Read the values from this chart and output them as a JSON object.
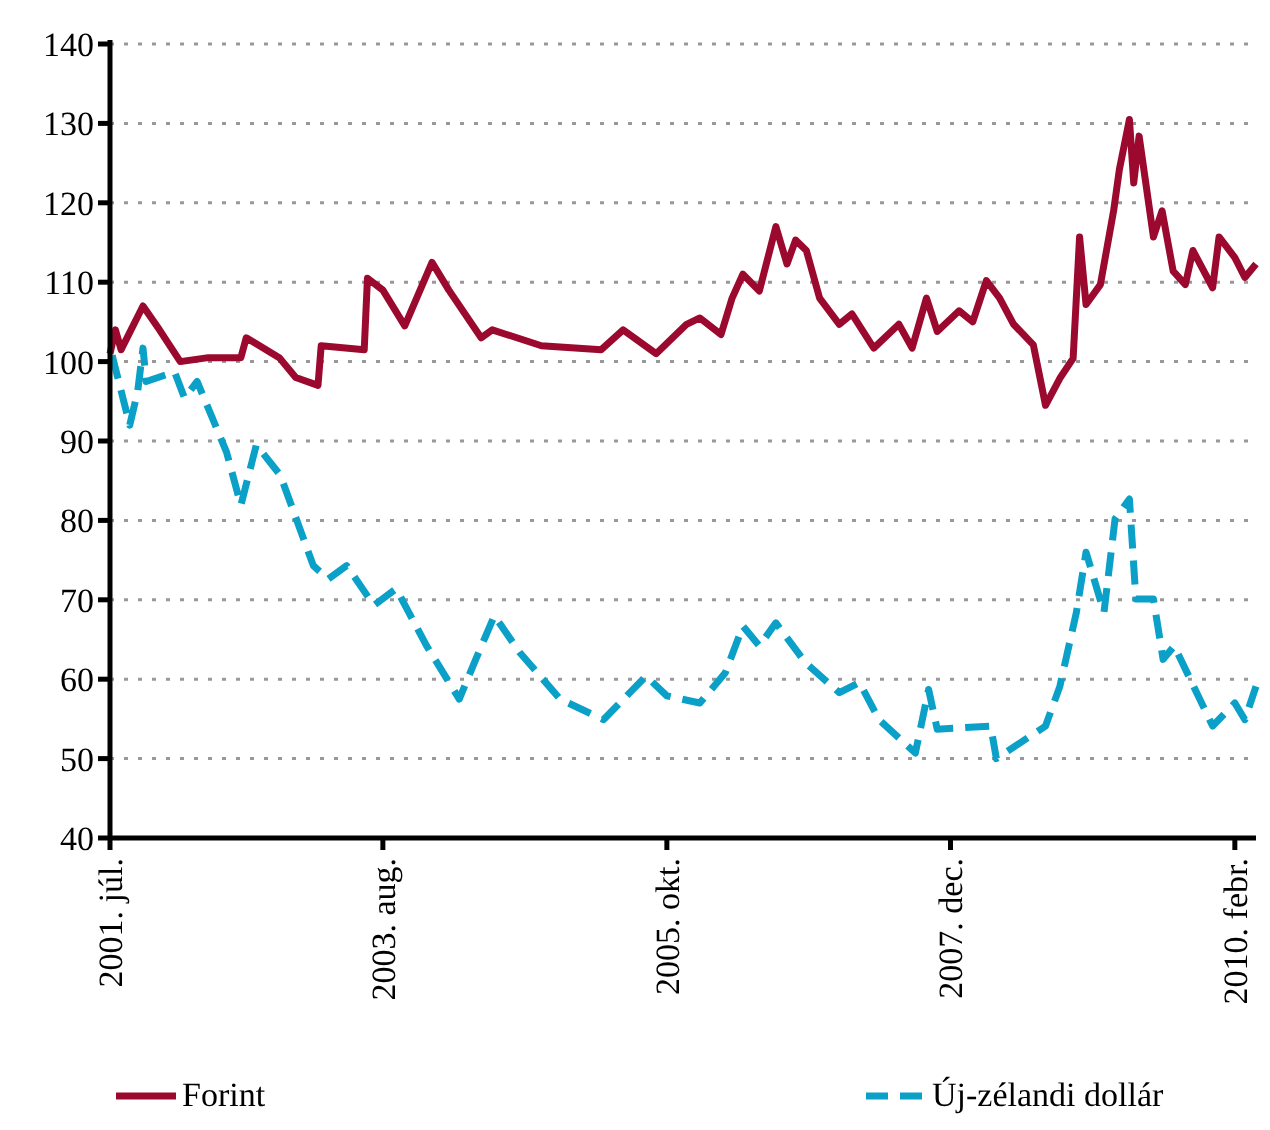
{
  "chart_data": {
    "type": "line",
    "xlim": [
      "2001-07-01",
      "2010-04-01"
    ],
    "xticks": [
      {
        "value": "2001-07-01",
        "label": "2001. júl."
      },
      {
        "value": "2003-08-01",
        "label": "2003. aug."
      },
      {
        "value": "2005-10-01",
        "label": "2005. okt."
      },
      {
        "value": "2007-12-01",
        "label": "2007. dec."
      },
      {
        "value": "2010-02-01",
        "label": "2010. febr."
      }
    ],
    "ylim": [
      40,
      140
    ],
    "yticks": [
      40,
      50,
      60,
      70,
      80,
      90,
      100,
      110,
      120,
      130,
      140
    ],
    "grid": "y",
    "legend": "bottom",
    "series": [
      {
        "name": "Forint",
        "color": "#9b0a2e",
        "line_style": "solid",
        "x": [
          "2001-07-01",
          "2001-07-16",
          "2001-08-01",
          "2001-10-01",
          "2001-11-16",
          "2002-01-13",
          "2002-04-01",
          "2002-07-01",
          "2002-07-16",
          "2002-10-16",
          "2002-12-01",
          "2003-02-01",
          "2003-02-10",
          "2003-06-10",
          "2003-06-19",
          "2003-08-01",
          "2003-10-01",
          "2003-12-16",
          "2004-02-01",
          "2004-05-01",
          "2004-06-01",
          "2004-10-16",
          "2005-04-01",
          "2005-06-01",
          "2005-09-01",
          "2005-11-25",
          "2006-01-01",
          "2006-03-01",
          "2006-04-01",
          "2006-05-01",
          "2006-06-16",
          "2006-08-01",
          "2006-09-01",
          "2006-09-25",
          "2006-10-25",
          "2006-12-01",
          "2007-01-25",
          "2007-03-01",
          "2007-05-01",
          "2007-07-10",
          "2007-08-16",
          "2007-09-25",
          "2007-10-25",
          "2007-12-25",
          "2008-02-01",
          "2008-03-10",
          "2008-04-16",
          "2008-05-25",
          "2008-07-19",
          "2008-08-22",
          "2008-10-01",
          "2008-11-07",
          "2008-11-25",
          "2008-12-13",
          "2009-01-22",
          "2009-02-28",
          "2009-03-16",
          "2009-04-13",
          "2009-04-25",
          "2009-05-10",
          "2009-06-19",
          "2009-07-13",
          "2009-08-13",
          "2009-09-16",
          "2009-10-07",
          "2009-12-01",
          "2009-12-19",
          "2010-02-01",
          "2010-03-01",
          "2010-04-01"
        ],
        "values": [
          101,
          104,
          101.5,
          107,
          104,
          100,
          100.5,
          100.5,
          103,
          100.5,
          98,
          97,
          102,
          101.5,
          110.5,
          109,
          104.5,
          112.5,
          109,
          103,
          104,
          102,
          101.5,
          104,
          101,
          104.7,
          105.5,
          103.4,
          108,
          111,
          108.9,
          117,
          112.3,
          115.3,
          114,
          108,
          104.7,
          106,
          101.7,
          104.7,
          101.7,
          108,
          103.8,
          106.4,
          105,
          110.2,
          108,
          104.7,
          102.1,
          94.5,
          97.9,
          100.4,
          115.7,
          107.2,
          109.7,
          119,
          124.2,
          130.5,
          122.5,
          128.4,
          115.7,
          119,
          111.4,
          109.7,
          114,
          109.3,
          115.7,
          113.1,
          110.6,
          112.3
        ]
      },
      {
        "name": "Új-zélandi dollár",
        "color": "#0aa0c8",
        "line_style": "dashed",
        "x": [
          "2001-07-07",
          "2001-08-25",
          "2001-09-16",
          "2001-10-01",
          "2001-10-10",
          "2001-12-28",
          "2002-01-25",
          "2002-03-01",
          "2002-05-22",
          "2002-07-01",
          "2002-08-13",
          "2002-10-19",
          "2003-01-19",
          "2003-03-01",
          "2003-04-22",
          "2003-07-07",
          "2003-09-07",
          "2003-12-01",
          "2004-03-01",
          "2004-04-16",
          "2004-06-07",
          "2004-08-16",
          "2004-12-07",
          "2005-04-07",
          "2005-08-04",
          "2005-10-01",
          "2006-01-01",
          "2006-03-13",
          "2006-05-01",
          "2006-06-16",
          "2006-08-01",
          "2006-10-22",
          "2007-01-25",
          "2007-03-22",
          "2007-05-16",
          "2007-08-25",
          "2007-10-01",
          "2007-10-25",
          "2008-03-22",
          "2008-04-07",
          "2008-08-22",
          "2008-10-01",
          "2008-11-16",
          "2008-12-13",
          "2009-02-01",
          "2009-03-04",
          "2009-04-13",
          "2009-05-01",
          "2009-06-19",
          "2009-07-16",
          "2009-08-16",
          "2009-12-01",
          "2010-02-01",
          "2010-03-01",
          "2010-04-01"
        ],
        "values": [
          100.8,
          92,
          96.2,
          101.7,
          97.5,
          98.7,
          95.4,
          97.5,
          88.6,
          81.9,
          89.5,
          85.7,
          74.3,
          72.6,
          74.3,
          69.3,
          71.4,
          64.2,
          57.5,
          62.5,
          68,
          63.4,
          57.5,
          54.9,
          60.4,
          57.9,
          57,
          60.8,
          66.7,
          64.2,
          67.1,
          62.1,
          58.3,
          59.6,
          54.9,
          50.7,
          58.7,
          53.7,
          54.1,
          50,
          54.1,
          59.1,
          68.4,
          76,
          68.4,
          80.2,
          82.7,
          70.1,
          70.1,
          62.5,
          64.2,
          54.1,
          57,
          54.9,
          59.1
        ]
      }
    ]
  }
}
